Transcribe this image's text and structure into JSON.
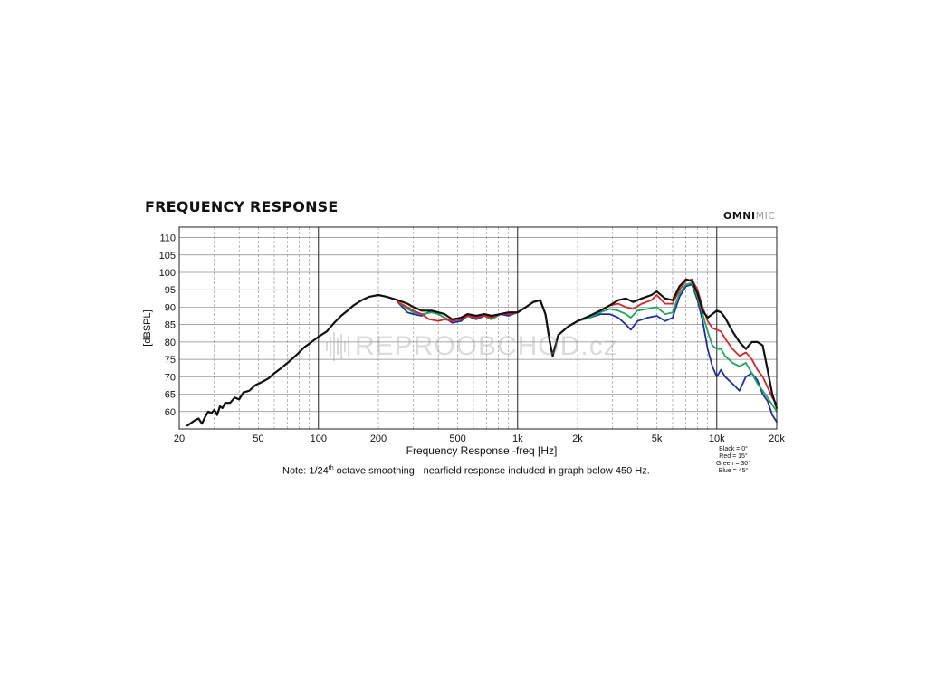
{
  "chart_data": {
    "type": "line",
    "title": "FREQUENCY RESPONSE",
    "brand": {
      "bold": "OMNI",
      "light": "MIC"
    },
    "xlabel": "Frequency Response -freq [Hz]",
    "ylabel": "[dBSPL]",
    "x_scale": "log",
    "xlim": [
      20,
      20000
    ],
    "ylim": [
      55,
      113
    ],
    "x_ticks": [
      {
        "value": 20,
        "label": "20"
      },
      {
        "value": 50,
        "label": "50"
      },
      {
        "value": 100,
        "label": "100"
      },
      {
        "value": 200,
        "label": "200"
      },
      {
        "value": 500,
        "label": "500"
      },
      {
        "value": 1000,
        "label": "1k"
      },
      {
        "value": 2000,
        "label": "2k"
      },
      {
        "value": 5000,
        "label": "5k"
      },
      {
        "value": 10000,
        "label": "10k"
      },
      {
        "value": 20000,
        "label": "20k"
      }
    ],
    "y_ticks": [
      60,
      65,
      70,
      75,
      80,
      85,
      90,
      95,
      100,
      105,
      110
    ],
    "grid": true,
    "legend_position": "bottom-right",
    "legend": [
      "Black = 0°",
      "Red = 15°",
      "Green = 30°",
      "Blue = 45°"
    ],
    "note": {
      "before": "Note: 1/24",
      "sup": "th",
      "after": " octave smoothing - nearfield response included in graph below 450 Hz."
    },
    "watermark": "REPROOBCHOD.cz",
    "series": [
      {
        "color": "#1c2fa8",
        "points": [
          [
            250,
            91.5
          ],
          [
            280,
            88.5
          ],
          [
            300,
            88
          ],
          [
            330,
            87.5
          ],
          [
            370,
            89
          ],
          [
            400,
            88
          ],
          [
            430,
            87
          ],
          [
            470,
            85.5
          ],
          [
            520,
            86
          ],
          [
            560,
            87.5
          ],
          [
            620,
            86.5
          ],
          [
            680,
            87.5
          ],
          [
            740,
            86.5
          ],
          [
            820,
            88
          ],
          [
            900,
            87.5
          ],
          [
            1000,
            88.5
          ],
          [
            1100,
            90
          ],
          [
            1200,
            91.5
          ],
          [
            1300,
            92
          ],
          [
            1380,
            88
          ],
          [
            1450,
            80
          ],
          [
            1500,
            76
          ],
          [
            1600,
            82
          ],
          [
            1800,
            84.5
          ],
          [
            2000,
            86
          ],
          [
            2300,
            87
          ],
          [
            2600,
            88
          ],
          [
            2900,
            88
          ],
          [
            3200,
            87
          ],
          [
            3500,
            85
          ],
          [
            3700,
            83.5
          ],
          [
            4000,
            86
          ],
          [
            4500,
            87
          ],
          [
            5000,
            87.5
          ],
          [
            5500,
            86
          ],
          [
            6000,
            87
          ],
          [
            6500,
            93
          ],
          [
            7000,
            96
          ],
          [
            7500,
            96.5
          ],
          [
            8000,
            92
          ],
          [
            8500,
            86
          ],
          [
            9000,
            78
          ],
          [
            9500,
            73
          ],
          [
            10000,
            70
          ],
          [
            10500,
            72
          ],
          [
            11000,
            70
          ],
          [
            12000,
            68
          ],
          [
            13000,
            66
          ],
          [
            14000,
            70
          ],
          [
            15000,
            71
          ],
          [
            16000,
            69
          ],
          [
            17000,
            65
          ],
          [
            18000,
            63
          ],
          [
            19000,
            59
          ],
          [
            20000,
            57
          ]
        ]
      },
      {
        "color": "#1fa85a",
        "points": [
          [
            250,
            91.5
          ],
          [
            280,
            89.5
          ],
          [
            300,
            88.5
          ],
          [
            330,
            88
          ],
          [
            370,
            88.5
          ],
          [
            400,
            88
          ],
          [
            430,
            87
          ],
          [
            470,
            86
          ],
          [
            520,
            86.5
          ],
          [
            560,
            87.5
          ],
          [
            620,
            87
          ],
          [
            680,
            87.5
          ],
          [
            740,
            86.5
          ],
          [
            820,
            88
          ],
          [
            900,
            88
          ],
          [
            1000,
            88.5
          ],
          [
            1100,
            90
          ],
          [
            1200,
            91.5
          ],
          [
            1300,
            92
          ],
          [
            1380,
            88
          ],
          [
            1450,
            80
          ],
          [
            1500,
            76
          ],
          [
            1600,
            82
          ],
          [
            1800,
            84.5
          ],
          [
            2000,
            86
          ],
          [
            2300,
            87
          ],
          [
            2600,
            88.5
          ],
          [
            2900,
            89.5
          ],
          [
            3200,
            89
          ],
          [
            3500,
            88
          ],
          [
            3700,
            87
          ],
          [
            4000,
            89
          ],
          [
            4500,
            89.5
          ],
          [
            5000,
            90
          ],
          [
            5500,
            88
          ],
          [
            6000,
            88.5
          ],
          [
            6500,
            94
          ],
          [
            7000,
            96.5
          ],
          [
            7500,
            97
          ],
          [
            8000,
            93
          ],
          [
            8500,
            88
          ],
          [
            9000,
            83
          ],
          [
            9500,
            79
          ],
          [
            10000,
            78
          ],
          [
            10500,
            78
          ],
          [
            11000,
            76
          ],
          [
            12000,
            74
          ],
          [
            13000,
            73
          ],
          [
            14000,
            74
          ],
          [
            15000,
            71
          ],
          [
            16000,
            68
          ],
          [
            17000,
            66
          ],
          [
            18000,
            64
          ],
          [
            19000,
            62
          ],
          [
            20000,
            60
          ]
        ]
      },
      {
        "color": "#d6262b",
        "points": [
          [
            250,
            91.5
          ],
          [
            280,
            90
          ],
          [
            300,
            89
          ],
          [
            330,
            88
          ],
          [
            360,
            86.5
          ],
          [
            400,
            86
          ],
          [
            430,
            86.5
          ],
          [
            470,
            86
          ],
          [
            520,
            86.5
          ],
          [
            560,
            87.5
          ],
          [
            620,
            87
          ],
          [
            680,
            87.5
          ],
          [
            740,
            87
          ],
          [
            820,
            88
          ],
          [
            900,
            88
          ],
          [
            1000,
            88.5
          ],
          [
            1100,
            90
          ],
          [
            1200,
            91.5
          ],
          [
            1300,
            92
          ],
          [
            1380,
            88
          ],
          [
            1450,
            80
          ],
          [
            1500,
            76
          ],
          [
            1600,
            82
          ],
          [
            1800,
            84.5
          ],
          [
            2000,
            86
          ],
          [
            2300,
            87.5
          ],
          [
            2600,
            89
          ],
          [
            2900,
            90.5
          ],
          [
            3200,
            91
          ],
          [
            3500,
            90
          ],
          [
            3800,
            89.5
          ],
          [
            4200,
            91
          ],
          [
            4700,
            92
          ],
          [
            5000,
            93.5
          ],
          [
            5500,
            91
          ],
          [
            6000,
            91
          ],
          [
            6500,
            95
          ],
          [
            7000,
            97.5
          ],
          [
            7500,
            98
          ],
          [
            8000,
            95
          ],
          [
            8500,
            90
          ],
          [
            9000,
            86
          ],
          [
            9500,
            84
          ],
          [
            10000,
            83.5
          ],
          [
            10500,
            83
          ],
          [
            11000,
            81
          ],
          [
            12000,
            78
          ],
          [
            13000,
            76
          ],
          [
            14000,
            77
          ],
          [
            15000,
            75
          ],
          [
            16000,
            72
          ],
          [
            17000,
            70
          ],
          [
            18000,
            67
          ],
          [
            19000,
            64
          ],
          [
            20000,
            62
          ]
        ]
      },
      {
        "color": "#111111",
        "points": [
          [
            22,
            56
          ],
          [
            24,
            57.5
          ],
          [
            25,
            58
          ],
          [
            26,
            56.5
          ],
          [
            27,
            58.5
          ],
          [
            28,
            60
          ],
          [
            29,
            59.5
          ],
          [
            30,
            60.5
          ],
          [
            31,
            59
          ],
          [
            32,
            61.5
          ],
          [
            33,
            61
          ],
          [
            34,
            62.5
          ],
          [
            36,
            62.5
          ],
          [
            38,
            64
          ],
          [
            40,
            63.5
          ],
          [
            42,
            65.5
          ],
          [
            45,
            66
          ],
          [
            48,
            67.5
          ],
          [
            52,
            68.5
          ],
          [
            56,
            69.5
          ],
          [
            60,
            71
          ],
          [
            65,
            72.5
          ],
          [
            70,
            74
          ],
          [
            75,
            75.5
          ],
          [
            80,
            77
          ],
          [
            85,
            78.5
          ],
          [
            90,
            79.5
          ],
          [
            100,
            81.5
          ],
          [
            110,
            83
          ],
          [
            120,
            85.5
          ],
          [
            130,
            87.5
          ],
          [
            140,
            89
          ],
          [
            150,
            90.5
          ],
          [
            165,
            92
          ],
          [
            180,
            93
          ],
          [
            200,
            93.5
          ],
          [
            220,
            93
          ],
          [
            250,
            92
          ],
          [
            280,
            91
          ],
          [
            300,
            90
          ],
          [
            330,
            89
          ],
          [
            370,
            89
          ],
          [
            400,
            88.5
          ],
          [
            430,
            88
          ],
          [
            470,
            86.5
          ],
          [
            520,
            87
          ],
          [
            560,
            88
          ],
          [
            620,
            87.5
          ],
          [
            680,
            88
          ],
          [
            740,
            87.5
          ],
          [
            820,
            88
          ],
          [
            900,
            88.5
          ],
          [
            1000,
            88.5
          ],
          [
            1100,
            90
          ],
          [
            1200,
            91.5
          ],
          [
            1300,
            92
          ],
          [
            1380,
            88
          ],
          [
            1450,
            80
          ],
          [
            1500,
            76
          ],
          [
            1600,
            82
          ],
          [
            1800,
            84.5
          ],
          [
            2000,
            86
          ],
          [
            2300,
            87.5
          ],
          [
            2600,
            89
          ],
          [
            2900,
            90.5
          ],
          [
            3200,
            92
          ],
          [
            3500,
            92.5
          ],
          [
            3800,
            91.5
          ],
          [
            4200,
            92.5
          ],
          [
            4700,
            93.5
          ],
          [
            5000,
            94.5
          ],
          [
            5500,
            92.5
          ],
          [
            6000,
            92
          ],
          [
            6500,
            96
          ],
          [
            7000,
            98
          ],
          [
            7500,
            97.5
          ],
          [
            8000,
            94
          ],
          [
            8500,
            89
          ],
          [
            9000,
            87
          ],
          [
            9500,
            88
          ],
          [
            10000,
            89
          ],
          [
            10500,
            88.5
          ],
          [
            11000,
            87
          ],
          [
            12000,
            83
          ],
          [
            13000,
            80
          ],
          [
            14000,
            78
          ],
          [
            15000,
            80
          ],
          [
            16000,
            80
          ],
          [
            17000,
            79
          ],
          [
            18000,
            72
          ],
          [
            19000,
            65
          ],
          [
            20000,
            61
          ]
        ]
      }
    ]
  }
}
